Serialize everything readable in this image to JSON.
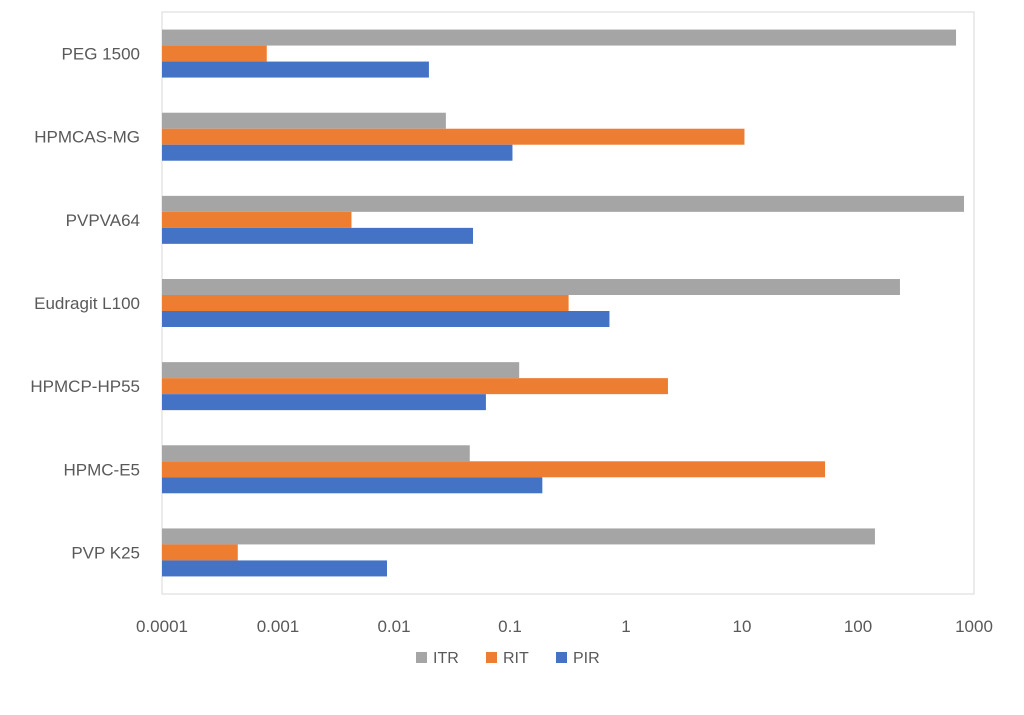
{
  "chart_data": {
    "type": "bar",
    "orientation": "horizontal",
    "x_scale": "log",
    "xlim": [
      0.0001,
      1000
    ],
    "x_ticks": [
      "0.0001",
      "0.001",
      "0.01",
      "0.1",
      "1",
      "10",
      "100",
      "1000"
    ],
    "grid": false,
    "legend_position": "bottom",
    "categories": [
      "PEG 1500",
      "HPMCAS-MG",
      "PVPVA64",
      "Eudragit L100",
      "HPMCP-HP55",
      "HPMC-E5",
      "PVP K25"
    ],
    "series": [
      {
        "name": "ITR",
        "color": "#a5a5a5",
        "values": [
          700,
          0.028,
          820,
          230,
          0.12,
          0.045,
          140
        ]
      },
      {
        "name": "RIT",
        "color": "#ed7d31",
        "values": [
          0.0008,
          10.5,
          0.0043,
          0.32,
          2.3,
          52,
          0.00045
        ]
      },
      {
        "name": "PIR",
        "color": "#4472c4",
        "values": [
          0.02,
          0.105,
          0.048,
          0.72,
          0.062,
          0.19,
          0.0087
        ]
      }
    ]
  }
}
